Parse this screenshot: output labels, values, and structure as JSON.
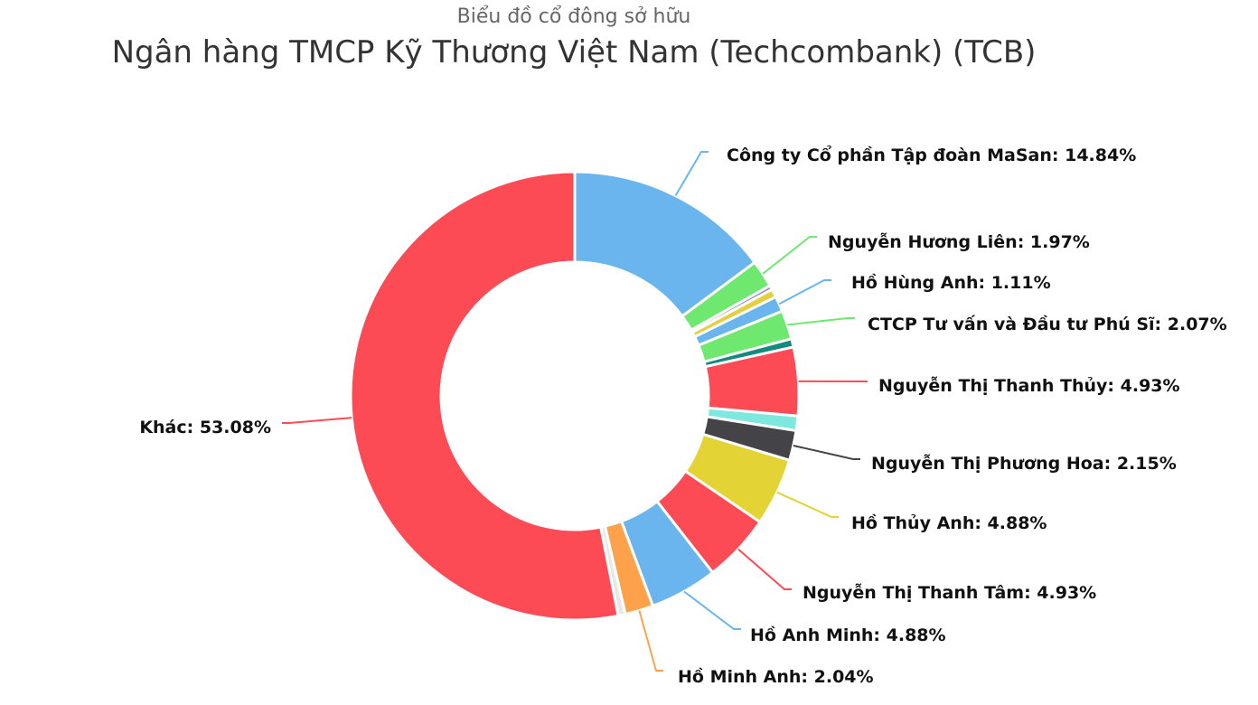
{
  "subtitle": "Biểu đồ cổ đông sở hữu",
  "title": "Ngân hàng TMCP Kỹ Thương Việt Nam (Techcombank) (TCB)",
  "chart_data": {
    "type": "pie",
    "title": "Ngân hàng TMCP Kỹ Thương Việt Nam (Techcombank) (TCB)",
    "subtitle": "Biểu đồ cổ đông sở hữu",
    "donut": true,
    "unit": "%",
    "slices": [
      {
        "name": "Công ty Cổ phần Tập đoàn MaSan",
        "value": 14.84,
        "color": "#6bb5ee",
        "label": "Công ty Cổ phần Tập đoàn MaSan: 14.84%"
      },
      {
        "name": "Nguyễn Hương Liên",
        "value": 1.97,
        "color": "#6ee86e",
        "label": "Nguyễn Hương Liên: 1.97%"
      },
      {
        "name": "",
        "value": 0.3,
        "color": "#8a85c9",
        "label": ""
      },
      {
        "name": "",
        "value": 0.6,
        "color": "#e5cf3c",
        "label": ""
      },
      {
        "name": "Hồ Hùng Anh",
        "value": 1.11,
        "color": "#6bb5ee",
        "label": "Hồ Hùng Anh: 1.11%"
      },
      {
        "name": "CTCP Tư vấn và Đầu tư Phú Sĩ",
        "value": 2.07,
        "color": "#6ee86e",
        "label": "CTCP Tư vấn và Đầu tư Phú Sĩ: 2.07%"
      },
      {
        "name": "",
        "value": 0.6,
        "color": "#128a7e",
        "label": ""
      },
      {
        "name": "Nguyễn Thị Thanh Thủy",
        "value": 4.93,
        "color": "#fd4b55",
        "label": "Nguyễn Thị Thanh Thủy: 4.93%"
      },
      {
        "name": "",
        "value": 1.05,
        "color": "#7ee8df",
        "label": ""
      },
      {
        "name": "Nguyễn Thị Phương Hoa",
        "value": 2.15,
        "color": "#434348",
        "label": "Nguyễn Thị Phương Hoa: 2.15%"
      },
      {
        "name": "Hồ Thủy Anh",
        "value": 4.88,
        "color": "#e3d334",
        "label": "Hồ Thủy Anh: 4.88%"
      },
      {
        "name": "Nguyễn Thị Thanh Tâm",
        "value": 4.93,
        "color": "#fd4b55",
        "label": "Nguyễn Thị Thanh Tâm: 4.93%"
      },
      {
        "name": "Hồ Anh Minh",
        "value": 4.88,
        "color": "#6bb5ee",
        "label": "Hồ Anh Minh: 4.88%"
      },
      {
        "name": "Hồ Minh Anh",
        "value": 2.04,
        "color": "#fda24a",
        "label": "Hồ Minh Anh: 2.04%"
      },
      {
        "name": "",
        "value": 0.52,
        "color": "#e8e8e8",
        "label": ""
      },
      {
        "name": "Khác",
        "value": 53.08,
        "color": "#fd4b55",
        "label": "Khác: 53.08%"
      }
    ]
  }
}
